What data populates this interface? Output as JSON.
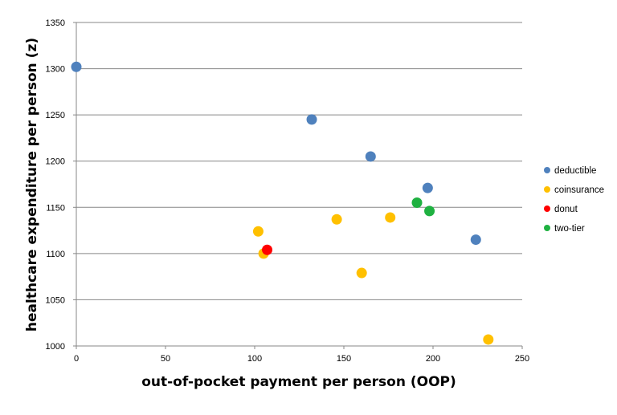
{
  "chart_data": {
    "type": "scatter",
    "title": "",
    "xlabel": "out-of-pocket payment per person (OOP)",
    "ylabel": "healthcare expenditure per person (z)",
    "xlim": [
      0,
      250
    ],
    "ylim": [
      1000,
      1350
    ],
    "xticks": [
      "0",
      "50",
      "100",
      "150",
      "200",
      "250"
    ],
    "yticks": [
      "1000",
      "1050",
      "1100",
      "1150",
      "1200",
      "1250",
      "1300",
      "1350"
    ],
    "grid": "horizontal",
    "legend_position": "right",
    "series": [
      {
        "name": "deductible",
        "color": "#4f81bd",
        "points": [
          [
            0,
            1302
          ],
          [
            132,
            1245
          ],
          [
            165,
            1205
          ],
          [
            197,
            1171
          ],
          [
            224,
            1115
          ]
        ]
      },
      {
        "name": "coinsurance",
        "color": "#ffc000",
        "points": [
          [
            102,
            1124
          ],
          [
            105,
            1100
          ],
          [
            146,
            1137
          ],
          [
            160,
            1079
          ],
          [
            176,
            1139
          ],
          [
            231,
            1007
          ]
        ]
      },
      {
        "name": "donut",
        "color": "#ff0000",
        "points": [
          [
            107,
            1104
          ]
        ]
      },
      {
        "name": "two-tier",
        "color": "#1fb141",
        "points": [
          [
            191,
            1155
          ],
          [
            198,
            1146
          ]
        ]
      }
    ]
  }
}
